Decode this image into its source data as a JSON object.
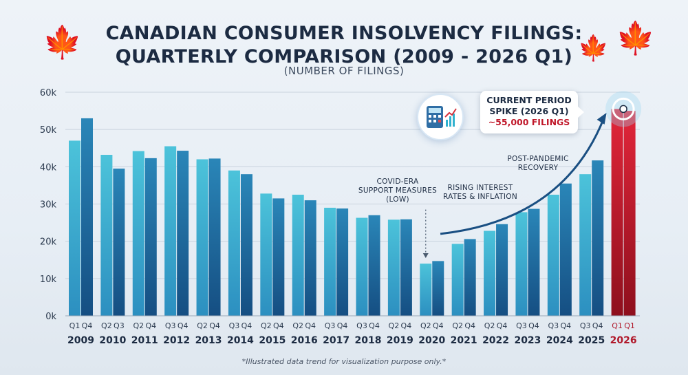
{
  "title_line1": "CANADIAN CONSUMER INSOLVENCY FILINGS:",
  "title_line2": "QUARTERLY COMPARISON (2009 - 2026 Q1)",
  "subtitle": "(NUMBER OF FILINGS)",
  "footnote": "*Illustrated data trend for visualization purpose only.*",
  "annotations": {
    "callout_line1": "CURRENT PERIOD",
    "callout_line2": "SPIKE (2026 Q1)",
    "callout_value": "~55,000 FILINGS",
    "covid_line1": "COVID-ERA",
    "covid_line2": "SUPPORT MEASURES",
    "covid_line3": "(LOW)",
    "rates_line1": "RISING INTEREST",
    "rates_line2": "RATES & INFLATION",
    "recovery_line1": "POST-PANDEMIC",
    "recovery_line2": "RECOVERY"
  },
  "icons": [
    "maple-leaf-icon",
    "calculator-chart-icon"
  ],
  "colors": {
    "bar_light": "#3fb8d3",
    "bar_dark": "#1a5f96",
    "highlight": "#c8162b",
    "title": "#1c2b42"
  },
  "chart_data": {
    "type": "bar",
    "ylim": [
      0,
      60000
    ],
    "yticks": [
      "0k",
      "10k",
      "20k",
      "30k",
      "40k",
      "50k",
      "60k"
    ],
    "grid": true,
    "groups": [
      {
        "year": "2009",
        "bars": [
          {
            "q": "Q1",
            "value": 47000
          },
          {
            "q": "Q4",
            "value": 53000
          }
        ]
      },
      {
        "year": "2010",
        "bars": [
          {
            "q": "Q2",
            "value": 43200
          },
          {
            "q": "Q3",
            "value": 39500
          }
        ]
      },
      {
        "year": "2011",
        "bars": [
          {
            "q": "Q2",
            "value": 44200
          },
          {
            "q": "Q4",
            "value": 42300
          }
        ]
      },
      {
        "year": "2012",
        "bars": [
          {
            "q": "Q3",
            "value": 45500
          },
          {
            "q": "Q4",
            "value": 44300
          }
        ]
      },
      {
        "year": "2013",
        "bars": [
          {
            "q": "Q2",
            "value": 42000
          },
          {
            "q": "Q4",
            "value": 42200
          }
        ]
      },
      {
        "year": "2014",
        "bars": [
          {
            "q": "Q3",
            "value": 39000
          },
          {
            "q": "Q4",
            "value": 38000
          }
        ]
      },
      {
        "year": "2015",
        "bars": [
          {
            "q": "Q2",
            "value": 32800
          },
          {
            "q": "Q4",
            "value": 31500
          }
        ]
      },
      {
        "year": "2016",
        "bars": [
          {
            "q": "Q2",
            "value": 32500
          },
          {
            "q": "Q4",
            "value": 31000
          }
        ]
      },
      {
        "year": "2017",
        "bars": [
          {
            "q": "Q3",
            "value": 29000
          },
          {
            "q": "Q4",
            "value": 28800
          }
        ]
      },
      {
        "year": "2018",
        "bars": [
          {
            "q": "Q3",
            "value": 26300
          },
          {
            "q": "Q4",
            "value": 27000
          }
        ]
      },
      {
        "year": "2019",
        "bars": [
          {
            "q": "Q2",
            "value": 25800
          },
          {
            "q": "Q4",
            "value": 25900
          }
        ]
      },
      {
        "year": "2020",
        "bars": [
          {
            "q": "Q2",
            "value": 14000
          },
          {
            "q": "Q4",
            "value": 14700
          }
        ]
      },
      {
        "year": "2021",
        "bars": [
          {
            "q": "Q2",
            "value": 19300
          },
          {
            "q": "Q4",
            "value": 20600
          }
        ]
      },
      {
        "year": "2022",
        "bars": [
          {
            "q": "Q2",
            "value": 22800
          },
          {
            "q": "Q4",
            "value": 24600
          }
        ]
      },
      {
        "year": "2023",
        "bars": [
          {
            "q": "Q3",
            "value": 27800
          },
          {
            "q": "Q4",
            "value": 28700
          }
        ]
      },
      {
        "year": "2024",
        "bars": [
          {
            "q": "Q3",
            "value": 32500
          },
          {
            "q": "Q4",
            "value": 35500
          }
        ]
      },
      {
        "year": "2025",
        "bars": [
          {
            "q": "Q3",
            "value": 38000
          },
          {
            "q": "Q4",
            "value": 41700
          }
        ]
      },
      {
        "year": "2026",
        "bars": [
          {
            "q": "Q1",
            "value": 55500
          },
          {
            "q": "Q1",
            "value": 55000
          }
        ],
        "highlight": true
      }
    ]
  }
}
